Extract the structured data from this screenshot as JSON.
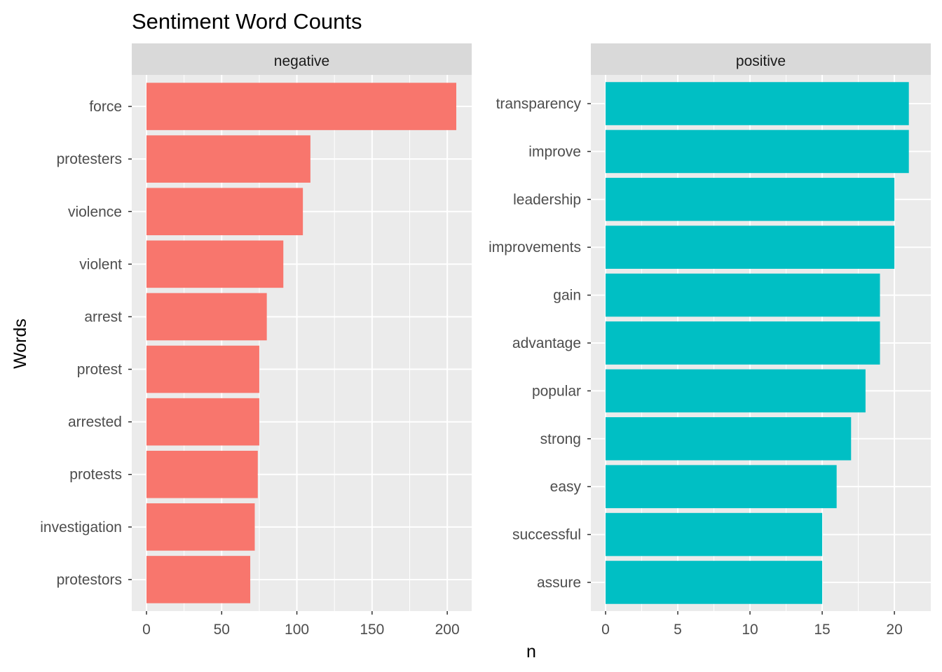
{
  "chart_data": {
    "type": "bar",
    "orientation": "horizontal",
    "title": "Sentiment Word Counts",
    "xlabel": "n",
    "ylabel": "Words",
    "grid": true,
    "facets": [
      {
        "name": "negative",
        "color": "#F8766D",
        "xlim": [
          0,
          210
        ],
        "xticks": [
          0,
          50,
          100,
          150,
          200
        ],
        "categories": [
          "force",
          "protesters",
          "violence",
          "violent",
          "arrest",
          "protest",
          "arrested",
          "protests",
          "investigation",
          "protestors"
        ],
        "values": [
          206,
          109,
          104,
          91,
          80,
          75,
          75,
          74,
          72,
          69
        ]
      },
      {
        "name": "positive",
        "color": "#00BFC4",
        "xlim": [
          0,
          21.5
        ],
        "xticks": [
          0,
          5,
          10,
          15,
          20
        ],
        "categories": [
          "transparency",
          "improve",
          "leadership",
          "improvements",
          "gain",
          "advantage",
          "popular",
          "strong",
          "easy",
          "successful",
          "assure"
        ],
        "values": [
          21,
          21,
          20,
          20,
          19,
          19,
          18,
          17,
          16,
          15,
          15
        ]
      }
    ]
  }
}
